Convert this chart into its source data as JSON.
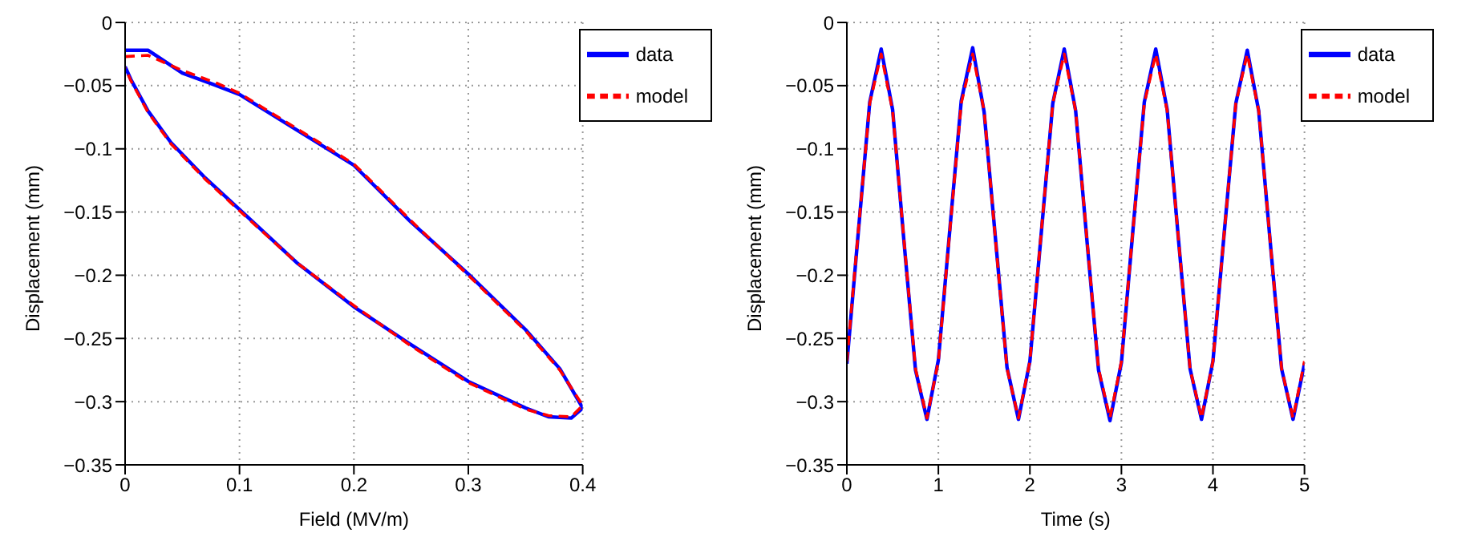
{
  "chart_data": [
    {
      "type": "line",
      "xlabel": "Field (MV/m)",
      "ylabel": "Displacement (mm)",
      "xlim": [
        0,
        0.4
      ],
      "xticks": [
        0,
        0.1,
        0.2,
        0.3,
        0.4
      ],
      "ylim": [
        -0.35,
        0
      ],
      "yticks": [
        -0.35,
        -0.3,
        -0.25,
        -0.2,
        -0.15,
        -0.1,
        -0.05,
        0
      ],
      "grid": true,
      "legend": "top right",
      "series": [
        {
          "name": "data",
          "color": "#0000ff",
          "line_style": "solid",
          "x": [
            0,
            0.02,
            0.05,
            0.08,
            0.1,
            0.15,
            0.2,
            0.25,
            0.3,
            0.35,
            0.38,
            0.4,
            0.39,
            0.37,
            0.35,
            0.3,
            0.25,
            0.2,
            0.15,
            0.1,
            0.07,
            0.04,
            0.02,
            0.005,
            0
          ],
          "values": [
            -0.022,
            -0.022,
            -0.04,
            -0.05,
            -0.057,
            -0.085,
            -0.113,
            -0.158,
            -0.199,
            -0.243,
            -0.274,
            -0.305,
            -0.313,
            -0.312,
            -0.305,
            -0.284,
            -0.255,
            -0.225,
            -0.19,
            -0.148,
            -0.123,
            -0.095,
            -0.07,
            -0.045,
            -0.035
          ]
        },
        {
          "name": "model",
          "color": "#ff0000",
          "line_style": "dashed",
          "x": [
            0,
            0.02,
            0.05,
            0.08,
            0.1,
            0.15,
            0.2,
            0.25,
            0.3,
            0.35,
            0.38,
            0.4,
            0.39,
            0.37,
            0.35,
            0.3,
            0.25,
            0.2,
            0.15,
            0.1,
            0.07,
            0.04,
            0.02,
            0.005,
            0
          ],
          "values": [
            -0.027,
            -0.026,
            -0.038,
            -0.048,
            -0.056,
            -0.084,
            -0.112,
            -0.157,
            -0.2,
            -0.244,
            -0.275,
            -0.303,
            -0.312,
            -0.311,
            -0.306,
            -0.285,
            -0.256,
            -0.224,
            -0.19,
            -0.149,
            -0.124,
            -0.096,
            -0.071,
            -0.046,
            -0.036
          ]
        }
      ]
    },
    {
      "type": "line",
      "xlabel": "Time (s)",
      "ylabel": "Displacement (mm)",
      "xlim": [
        0,
        5
      ],
      "xticks": [
        0,
        1,
        2,
        3,
        4,
        5
      ],
      "ylim": [
        -0.35,
        0
      ],
      "yticks": [
        -0.35,
        -0.3,
        -0.25,
        -0.2,
        -0.15,
        -0.1,
        -0.05,
        0
      ],
      "grid": true,
      "legend": "top right",
      "x": [
        0,
        0.125,
        0.25,
        0.375,
        0.5,
        0.625,
        0.75,
        0.875,
        1,
        1.125,
        1.25,
        1.375,
        1.5,
        1.625,
        1.75,
        1.875,
        2,
        2.125,
        2.25,
        2.375,
        2.5,
        2.625,
        2.75,
        2.875,
        3,
        3.125,
        3.25,
        3.375,
        3.5,
        3.625,
        3.75,
        3.875,
        4,
        4.125,
        4.25,
        4.375,
        4.5,
        4.625,
        4.75,
        4.875,
        5
      ],
      "series": [
        {
          "name": "data",
          "color": "#0000ff",
          "line_style": "solid",
          "values": [
            -0.27,
            -0.166,
            -0.063,
            -0.021,
            -0.069,
            -0.174,
            -0.275,
            -0.314,
            -0.267,
            -0.164,
            -0.062,
            -0.02,
            -0.071,
            -0.172,
            -0.273,
            -0.314,
            -0.268,
            -0.166,
            -0.064,
            -0.021,
            -0.07,
            -0.174,
            -0.275,
            -0.315,
            -0.269,
            -0.165,
            -0.063,
            -0.021,
            -0.069,
            -0.173,
            -0.274,
            -0.314,
            -0.268,
            -0.165,
            -0.064,
            -0.022,
            -0.07,
            -0.173,
            -0.274,
            -0.314,
            -0.27
          ]
        },
        {
          "name": "model",
          "color": "#ff0000",
          "line_style": "dashed",
          "values": [
            -0.268,
            -0.165,
            -0.064,
            -0.025,
            -0.07,
            -0.173,
            -0.274,
            -0.313,
            -0.268,
            -0.165,
            -0.064,
            -0.025,
            -0.07,
            -0.173,
            -0.274,
            -0.313,
            -0.268,
            -0.165,
            -0.064,
            -0.025,
            -0.07,
            -0.173,
            -0.274,
            -0.313,
            -0.268,
            -0.165,
            -0.064,
            -0.025,
            -0.07,
            -0.173,
            -0.274,
            -0.313,
            -0.268,
            -0.165,
            -0.064,
            -0.025,
            -0.07,
            -0.173,
            -0.274,
            -0.313,
            -0.268
          ]
        }
      ]
    }
  ]
}
